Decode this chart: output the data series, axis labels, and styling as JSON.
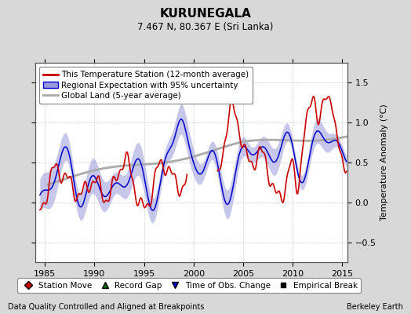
{
  "title": "KURUNEGALA",
  "subtitle": "7.467 N, 80.367 E (Sri Lanka)",
  "ylabel": "Temperature Anomaly (°C)",
  "xlabel_left": "Data Quality Controlled and Aligned at Breakpoints",
  "xlabel_right": "Berkeley Earth",
  "xlim": [
    1984.0,
    2015.5
  ],
  "ylim": [
    -0.75,
    1.75
  ],
  "yticks": [
    -0.5,
    0.0,
    0.5,
    1.0,
    1.5
  ],
  "xticks": [
    1985,
    1990,
    1995,
    2000,
    2005,
    2010,
    2015
  ],
  "bg_color": "#d8d8d8",
  "plot_bg_color": "#ffffff",
  "red_color": "#cc0000",
  "blue_color": "#0000cc",
  "blue_fill_color": "#9999dd",
  "gray_color": "#aaaaaa",
  "title_fontsize": 11,
  "subtitle_fontsize": 8.5,
  "legend_fontsize": 7.5,
  "tick_fontsize": 8,
  "note_fontsize": 7
}
